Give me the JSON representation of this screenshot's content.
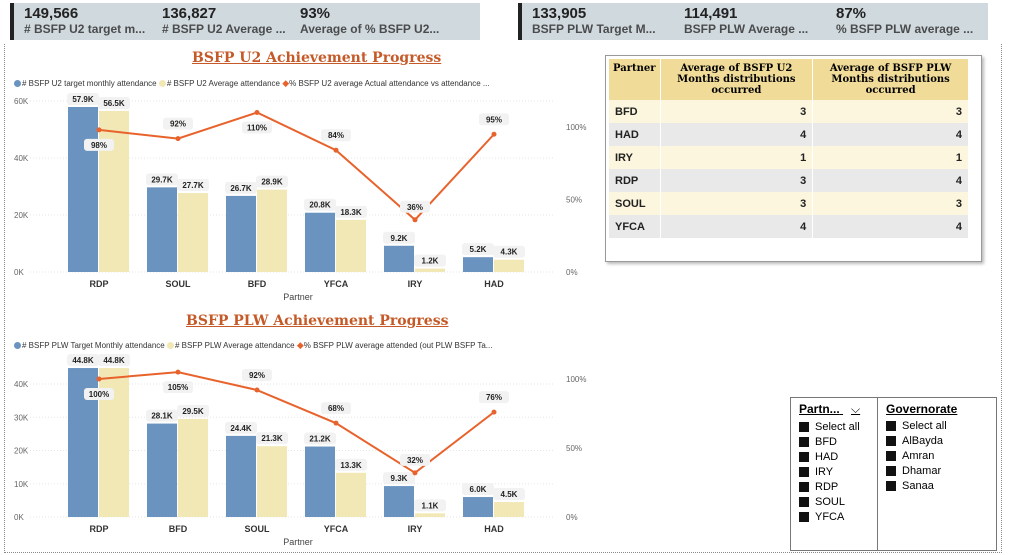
{
  "kpis_u2": [
    {
      "value": "149,566",
      "label": "# BSFP U2 target m..."
    },
    {
      "value": "136,827",
      "label": "# BSFP U2 Average ..."
    },
    {
      "value": "93%",
      "label": "Average of % BSFP U2..."
    }
  ],
  "kpis_plw": [
    {
      "value": "133,905",
      "label": "BSFP PLW Target M..."
    },
    {
      "value": "114,491",
      "label": "BSFP PLW Average ..."
    },
    {
      "value": "87%",
      "label": "% BSFP PLW average ..."
    }
  ],
  "chart_data": [
    {
      "type": "bar",
      "title": "BSFP U2 Achievement Progress",
      "xlabel": "Partner",
      "categories": [
        "RDP",
        "SOUL",
        "BFD",
        "YFCA",
        "IRY",
        "HAD"
      ],
      "yticks": [
        "0K",
        "20K",
        "40K",
        "60K"
      ],
      "ylim": [
        0,
        60000
      ],
      "y2ticks": [
        "0%",
        "50%",
        "100%"
      ],
      "y2lim": [
        0,
        120
      ],
      "legend": [
        "# BSFP U2 target monthly attendance",
        "# BSFP U2 Average attendance",
        "% BSFP U2 average Actual attendance vs attendance ..."
      ],
      "series": [
        {
          "name": "# BSFP U2 target monthly attendance",
          "values": [
            57900,
            29700,
            26700,
            20800,
            9200,
            5200
          ],
          "labels": [
            "57.9K",
            "29.7K",
            "26.7K",
            "20.8K",
            "9.2K",
            "5.2K"
          ]
        },
        {
          "name": "# BSFP U2 Average attendance",
          "values": [
            56500,
            27700,
            28900,
            18300,
            1200,
            4300
          ],
          "labels": [
            "56.5K",
            "27.7K",
            "28.9K",
            "18.3K",
            "1.2K",
            "4.3K"
          ]
        },
        {
          "name": "% BSFP U2 average Actual attendance vs attendance ...",
          "values": [
            98,
            92,
            110,
            84,
            36,
            95
          ],
          "labels": [
            "98%",
            "92%",
            "110%",
            "84%",
            "36%",
            "95%"
          ]
        }
      ]
    },
    {
      "type": "bar",
      "title": "BSFP PLW Achievement Progress",
      "xlabel": "Partner",
      "categories": [
        "RDP",
        "BFD",
        "SOUL",
        "YFCA",
        "IRY",
        "HAD"
      ],
      "yticks": [
        "0K",
        "10K",
        "20K",
        "30K",
        "40K"
      ],
      "ylim": [
        0,
        40000
      ],
      "y2ticks": [
        "0%",
        "50%",
        "100%"
      ],
      "y2lim": [
        0,
        100
      ],
      "legend": [
        "# BSFP PLW Target Monthly attendance",
        "# BSFP PLW Average attendance",
        "% BSFP PLW average attended (out PLW BSFP Ta..."
      ],
      "series": [
        {
          "name": "# BSFP PLW Target Monthly attendance",
          "values": [
            44800,
            28100,
            24400,
            21200,
            9300,
            6000
          ],
          "labels": [
            "44.8K",
            "28.1K",
            "24.4K",
            "21.2K",
            "9.3K",
            "6.0K"
          ]
        },
        {
          "name": "# BSFP PLW Average attendance",
          "values": [
            44800,
            29500,
            21300,
            13300,
            1100,
            4500
          ],
          "labels": [
            "44.8K",
            "29.5K",
            "21.3K",
            "13.3K",
            "1.1K",
            "4.5K"
          ]
        },
        {
          "name": "% BSFP PLW average attended (out PLW BSFP Ta...",
          "values": [
            100,
            105,
            92,
            68,
            32,
            76
          ],
          "labels": [
            "100%",
            "105%",
            "92%",
            "68%",
            "32%",
            "76%"
          ]
        }
      ]
    }
  ],
  "colors": {
    "bar1": "#6a93c0",
    "bar2": "#f1e8b5",
    "line": "#e8622c",
    "title": "#c55a28"
  },
  "table": {
    "headers": [
      "Partner",
      "Average of BSFP U2 Months distributions occurred",
      "Average of BSFP PLW Months distributions occurred"
    ],
    "rows": [
      [
        "BFD",
        "3",
        "3"
      ],
      [
        "HAD",
        "4",
        "4"
      ],
      [
        "IRY",
        "1",
        "1"
      ],
      [
        "RDP",
        "3",
        "4"
      ],
      [
        "SOUL",
        "3",
        "3"
      ],
      [
        "YFCA",
        "4",
        "4"
      ]
    ]
  },
  "slicers": {
    "partner": {
      "header": "Partn...",
      "items": [
        "Select all",
        "BFD",
        "HAD",
        "IRY",
        "RDP",
        "SOUL",
        "YFCA"
      ]
    },
    "governorate": {
      "header": "Governorate",
      "items": [
        "Select all",
        "AlBayda",
        "Amran",
        "Dhamar",
        "Sanaa"
      ]
    }
  }
}
